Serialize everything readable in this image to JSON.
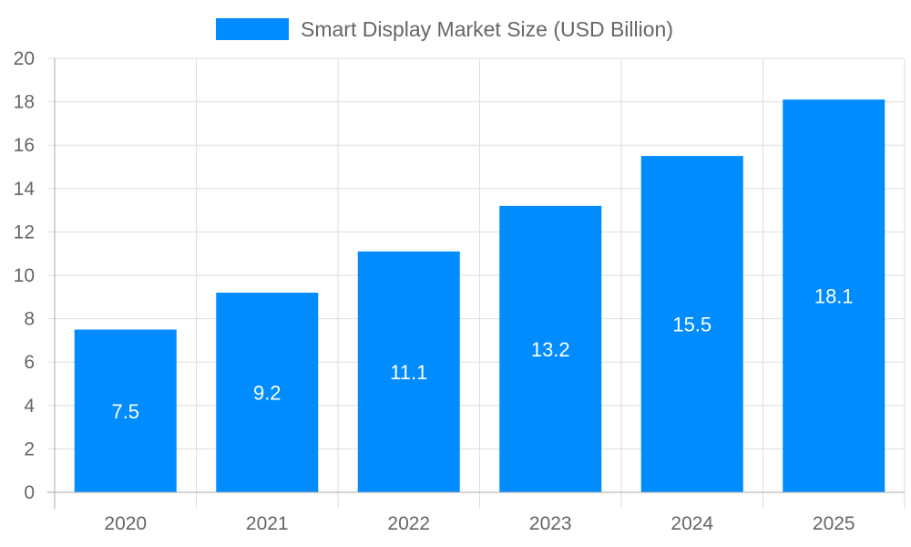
{
  "chart_data": {
    "type": "bar",
    "categories": [
      "2020",
      "2021",
      "2022",
      "2023",
      "2024",
      "2025"
    ],
    "series": [
      {
        "name": "Smart Display Market Size (USD Billion)",
        "values": [
          7.5,
          9.2,
          11.1,
          13.2,
          15.5,
          18.1
        ],
        "color": "#008cff"
      }
    ],
    "data_labels": [
      "7.5",
      "9.2",
      "11.1",
      "13.2",
      "15.5",
      "18.1"
    ],
    "ylim": [
      0,
      20
    ],
    "yticks": [
      "0",
      "2",
      "4",
      "6",
      "8",
      "10",
      "12",
      "14",
      "16",
      "18",
      "20"
    ],
    "grid": true,
    "legend_position": "top",
    "title": "",
    "xlabel": "",
    "ylabel": ""
  }
}
